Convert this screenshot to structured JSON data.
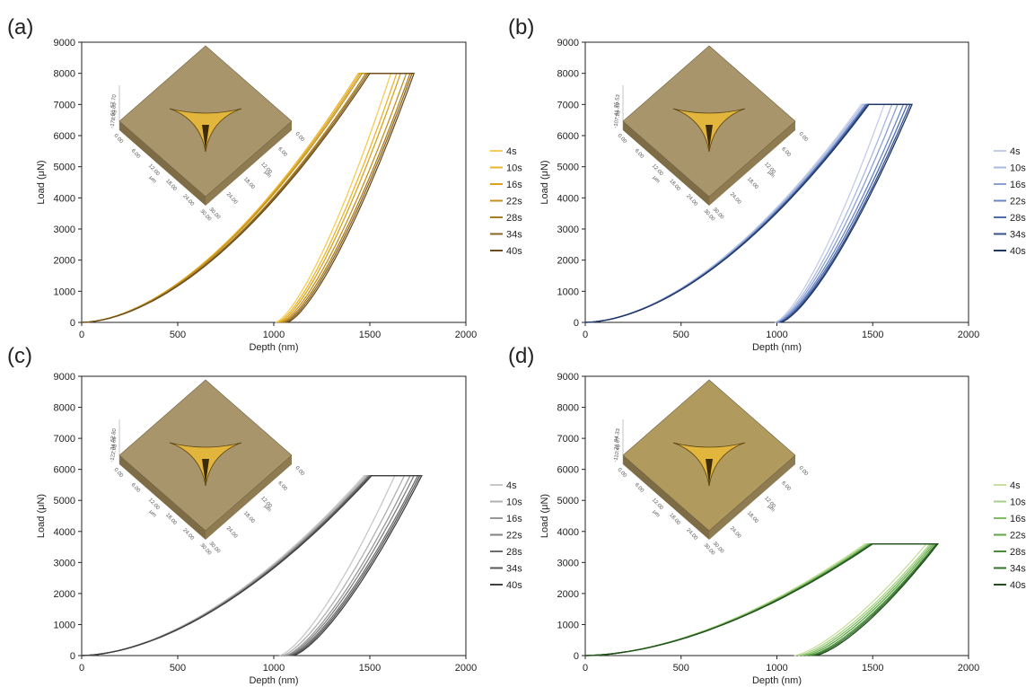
{
  "chart_data": [
    {
      "panel_label": "(a)",
      "type": "line",
      "xlabel": "Depth (nm)",
      "ylabel": "Load (μN)",
      "xlim": [
        0,
        2000
      ],
      "ylim": [
        0,
        9000
      ],
      "xticks": [
        "0",
        "500",
        "1000",
        "1500",
        "2000"
      ],
      "yticks": [
        "0",
        "1000",
        "2000",
        "3000",
        "4000",
        "5000",
        "6000",
        "7000",
        "8000",
        "9000"
      ],
      "peak_load": 8000,
      "inset": {
        "z_labels": [
          "57.70",
          "-60.00",
          "-178.49"
        ],
        "x_labels": [
          "0.00",
          "6.00",
          "12.00",
          "18.00",
          "24.00",
          "30.00"
        ],
        "y_labels": [
          "0.00",
          "6.00",
          "12.00",
          "18.00",
          "24.00",
          "30.00"
        ],
        "unit": "μm",
        "surface_color": "#a8956b"
      },
      "series": [
        {
          "name": "4s",
          "color": "#f5cc55",
          "load_start_depth": 1480,
          "hold_end_depth": 1610,
          "unload_end_depth": 1010
        },
        {
          "name": "10s",
          "color": "#eab52e",
          "load_start_depth": 1440,
          "hold_end_depth": 1640,
          "unload_end_depth": 1020
        },
        {
          "name": "16s",
          "color": "#d9a21a",
          "load_start_depth": 1450,
          "hold_end_depth": 1660,
          "unload_end_depth": 1030
        },
        {
          "name": "22s",
          "color": "#c49020",
          "load_start_depth": 1460,
          "hold_end_depth": 1690,
          "unload_end_depth": 1040
        },
        {
          "name": "28s",
          "color": "#a87c22",
          "load_start_depth": 1480,
          "hold_end_depth": 1710,
          "unload_end_depth": 1050
        },
        {
          "name": "34s",
          "color": "#8a6520",
          "load_start_depth": 1490,
          "hold_end_depth": 1720,
          "unload_end_depth": 1060
        },
        {
          "name": "40s",
          "color": "#6a4e1e",
          "load_start_depth": 1500,
          "hold_end_depth": 1730,
          "unload_end_depth": 1070
        }
      ]
    },
    {
      "panel_label": "(b)",
      "type": "line",
      "xlabel": "Depth (nm)",
      "ylabel": "Load (μN)",
      "xlim": [
        0,
        2000
      ],
      "ylim": [
        0,
        9000
      ],
      "xticks": [
        "0",
        "500",
        "1000",
        "1500",
        "2000"
      ],
      "yticks": [
        "0",
        "1000",
        "2000",
        "3000",
        "4000",
        "5000",
        "6000",
        "7000",
        "8000",
        "9000"
      ],
      "peak_load": 7000,
      "inset": {
        "z_labels": [
          "25.53",
          "-41.39",
          "-107.89"
        ],
        "x_labels": [
          "0.00",
          "6.00",
          "12.00",
          "18.00",
          "24.00",
          "30.00"
        ],
        "y_labels": [
          "0.00",
          "6.00",
          "12.00",
          "18.00",
          "24.00",
          "30.00"
        ],
        "unit": "μm",
        "surface_color": "#a8956b"
      },
      "series": [
        {
          "name": "4s",
          "color": "#c3cde6",
          "load_start_depth": 1440,
          "hold_end_depth": 1560,
          "unload_end_depth": 990
        },
        {
          "name": "10s",
          "color": "#a9b9df",
          "load_start_depth": 1450,
          "hold_end_depth": 1600,
          "unload_end_depth": 995
        },
        {
          "name": "16s",
          "color": "#8aa0d2",
          "load_start_depth": 1460,
          "hold_end_depth": 1630,
          "unload_end_depth": 1000
        },
        {
          "name": "22s",
          "color": "#6a86c3",
          "load_start_depth": 1465,
          "hold_end_depth": 1660,
          "unload_end_depth": 1005
        },
        {
          "name": "28s",
          "color": "#4d6bae",
          "load_start_depth": 1470,
          "hold_end_depth": 1680,
          "unload_end_depth": 1010
        },
        {
          "name": "34s",
          "color": "#36528f",
          "load_start_depth": 1475,
          "hold_end_depth": 1695,
          "unload_end_depth": 1015
        },
        {
          "name": "40s",
          "color": "#1f3663",
          "load_start_depth": 1480,
          "hold_end_depth": 1705,
          "unload_end_depth": 1020
        }
      ]
    },
    {
      "panel_label": "(c)",
      "type": "line",
      "xlabel": "Depth (nm)",
      "ylabel": "Load (μN)",
      "xlim": [
        0,
        2000
      ],
      "ylim": [
        0,
        9000
      ],
      "xticks": [
        "0",
        "500",
        "1000",
        "1500",
        "2000"
      ],
      "yticks": [
        "0",
        "1000",
        "2000",
        "3000",
        "4000",
        "5000",
        "6000",
        "7000",
        "8000",
        "9000"
      ],
      "peak_load": 5800,
      "inset": {
        "z_labels": [
          "52.80",
          "-34.66",
          "-122.08"
        ],
        "x_labels": [
          "0.00",
          "6.00",
          "12.00",
          "18.00",
          "24.00",
          "30.00"
        ],
        "y_labels": [
          "0.00",
          "6.00",
          "12.00",
          "18.00",
          "24.00",
          "30.00"
        ],
        "unit": "μm",
        "surface_color": "#a8956b"
      },
      "series": [
        {
          "name": "4s",
          "color": "#c8c8c8",
          "load_start_depth": 1470,
          "hold_end_depth": 1630,
          "unload_end_depth": 1030
        },
        {
          "name": "10s",
          "color": "#b0b0b0",
          "load_start_depth": 1480,
          "hold_end_depth": 1680,
          "unload_end_depth": 1045
        },
        {
          "name": "16s",
          "color": "#989898",
          "load_start_depth": 1490,
          "hold_end_depth": 1710,
          "unload_end_depth": 1060
        },
        {
          "name": "22s",
          "color": "#808080",
          "load_start_depth": 1495,
          "hold_end_depth": 1730,
          "unload_end_depth": 1070
        },
        {
          "name": "28s",
          "color": "#6c6c6c",
          "load_start_depth": 1500,
          "hold_end_depth": 1750,
          "unload_end_depth": 1080
        },
        {
          "name": "34s",
          "color": "#585858",
          "load_start_depth": 1505,
          "hold_end_depth": 1760,
          "unload_end_depth": 1090
        },
        {
          "name": "40s",
          "color": "#404040",
          "load_start_depth": 1510,
          "hold_end_depth": 1770,
          "unload_end_depth": 1100
        }
      ]
    },
    {
      "panel_label": "(d)",
      "type": "line",
      "xlabel": "Depth (nm)",
      "ylabel": "Load (μN)",
      "xlim": [
        0,
        2000
      ],
      "ylim": [
        0,
        9000
      ],
      "xticks": [
        "0",
        "500",
        "1000",
        "1500",
        "2000"
      ],
      "yticks": [
        "0",
        "1000",
        "2000",
        "3000",
        "4000",
        "5000",
        "6000",
        "7000",
        "8000",
        "9000"
      ],
      "peak_load": 3600,
      "inset": {
        "z_labels": [
          "94.33",
          "-26.07",
          "-110.46"
        ],
        "x_labels": [
          "0.00",
          "6.00",
          "12.00",
          "18.00",
          "24.00",
          "30.00"
        ],
        "y_labels": [
          "0.00",
          "6.00",
          "12.00",
          "18.00",
          "24.00",
          "30.00"
        ],
        "unit": "μm",
        "surface_color": "#b09a5e"
      },
      "series": [
        {
          "name": "4s",
          "color": "#c9df9c",
          "load_start_depth": 1460,
          "hold_end_depth": 1780,
          "unload_end_depth": 1090
        },
        {
          "name": "10s",
          "color": "#a6d189",
          "load_start_depth": 1470,
          "hold_end_depth": 1800,
          "unload_end_depth": 1110
        },
        {
          "name": "16s",
          "color": "#7fbd62",
          "load_start_depth": 1480,
          "hold_end_depth": 1810,
          "unload_end_depth": 1130
        },
        {
          "name": "22s",
          "color": "#5ea545",
          "load_start_depth": 1485,
          "hold_end_depth": 1820,
          "unload_end_depth": 1150
        },
        {
          "name": "28s",
          "color": "#468d37",
          "load_start_depth": 1490,
          "hold_end_depth": 1830,
          "unload_end_depth": 1170
        },
        {
          "name": "34s",
          "color": "#34722c",
          "load_start_depth": 1495,
          "hold_end_depth": 1835,
          "unload_end_depth": 1185
        },
        {
          "name": "40s",
          "color": "#234f1f",
          "load_start_depth": 1500,
          "hold_end_depth": 1840,
          "unload_end_depth": 1200
        }
      ]
    }
  ]
}
